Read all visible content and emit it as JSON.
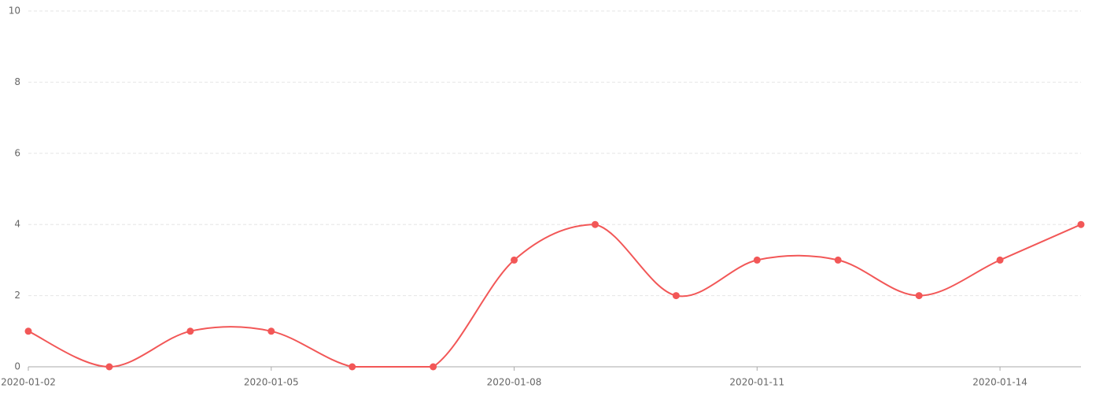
{
  "chart_data": {
    "type": "line",
    "categories": [
      "2020-01-02",
      null,
      null,
      "2020-01-05",
      null,
      null,
      "2020-01-08",
      null,
      null,
      "2020-01-11",
      null,
      null,
      "2020-01-14",
      null
    ],
    "series": [
      {
        "color": "#f25757",
        "values": [
          1,
          0,
          1,
          1,
          0,
          0,
          3,
          4,
          2,
          3,
          3,
          2,
          3,
          4
        ]
      }
    ],
    "ylim": [
      0,
      10
    ],
    "yticks": [
      0,
      2,
      4,
      6,
      8,
      10
    ],
    "grid": true,
    "smooth": true
  }
}
